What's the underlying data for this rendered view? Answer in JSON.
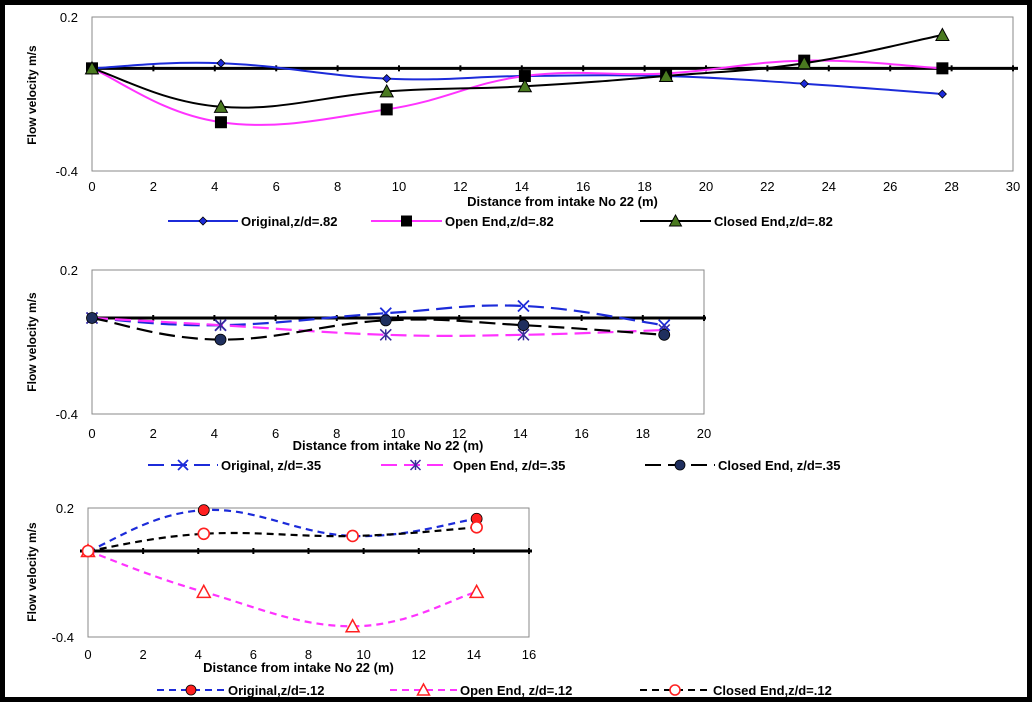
{
  "colors": {
    "blue": "#1c2bd9",
    "magenta": "#ff33ff",
    "black": "#000000",
    "red": "#ff2020",
    "navy": "#1f2f5e"
  },
  "chart_data": [
    {
      "type": "line",
      "ylabel": "Flow velocity m/s",
      "xlabel": "Distance from intake No 22  (m)",
      "xlim": [
        0,
        30
      ],
      "ylim": [
        -0.4,
        0.2
      ],
      "x_ticks": [
        "0",
        "2",
        "4",
        "6",
        "8",
        "10",
        "12",
        "14",
        "16",
        "18",
        "20",
        "22",
        "24",
        "26",
        "28",
        "30"
      ],
      "y_ticks": [
        "0.2",
        "-0.4"
      ],
      "smooth": true,
      "series": [
        {
          "name": "Original,z/d=.82",
          "color": "#1c2bd9",
          "marker": "diamond",
          "dash": "solid",
          "x": [
            0,
            4.2,
            9.6,
            14.1,
            18.7,
            23.2,
            27.7
          ],
          "y": [
            0,
            0.02,
            -0.04,
            -0.03,
            -0.03,
            -0.06,
            -0.1
          ]
        },
        {
          "name": "Open End,z/d=.82",
          "color": "#ff33ff",
          "marker": "square",
          "marker_color": "#000000",
          "dash": "solid",
          "x": [
            0,
            4.2,
            9.6,
            14.1,
            18.7,
            23.2,
            27.7
          ],
          "y": [
            0,
            -0.21,
            -0.16,
            -0.03,
            -0.02,
            0.03,
            0
          ]
        },
        {
          "name": "Closed End,z/d=.82",
          "color": "#000000",
          "marker": "triangle",
          "marker_color": "#4a7a20",
          "dash": "solid",
          "x": [
            0,
            4.2,
            9.6,
            14.1,
            18.7,
            23.2,
            27.7
          ],
          "y": [
            0,
            -0.15,
            -0.09,
            -0.07,
            -0.03,
            0.02,
            0.13
          ]
        }
      ]
    },
    {
      "type": "line",
      "ylabel": "Flow velocity m/s",
      "xlabel": "Distance from intake No 22  (m)",
      "xlim": [
        0,
        20
      ],
      "ylim": [
        -0.4,
        0.2
      ],
      "x_ticks": [
        "0",
        "2",
        "4",
        "6",
        "8",
        "10",
        "12",
        "14",
        "16",
        "18",
        "20"
      ],
      "y_ticks": [
        "0.2",
        "-0.4"
      ],
      "smooth": true,
      "series": [
        {
          "name": "Original, z/d=.35",
          "color": "#1c2bd9",
          "marker": "x",
          "dash": "long",
          "x": [
            0,
            4.2,
            9.6,
            14.1,
            18.7
          ],
          "y": [
            0,
            -0.03,
            0.02,
            0.05,
            -0.03
          ]
        },
        {
          "name": "Open End, z/d=.35",
          "color": "#ff33ff",
          "marker": "star",
          "dash": "long",
          "x": [
            0,
            4.2,
            9.6,
            14.1,
            18.7
          ],
          "y": [
            0,
            -0.03,
            -0.07,
            -0.07,
            -0.05
          ]
        },
        {
          "name": "Closed End, z/d=.35",
          "color": "#000000",
          "marker": "circle",
          "marker_color": "#1f2f5e",
          "dash": "long",
          "x": [
            0,
            4.2,
            9.6,
            14.1,
            18.7
          ],
          "y": [
            0,
            -0.09,
            -0.01,
            -0.03,
            -0.07
          ]
        }
      ]
    },
    {
      "type": "line",
      "ylabel": "Flow velocity m/s",
      "xlabel": "Distance from intake No 22 (m)",
      "xlim": [
        0,
        16
      ],
      "ylim": [
        -0.4,
        0.2
      ],
      "x_ticks": [
        "0",
        "2",
        "4",
        "6",
        "8",
        "10",
        "12",
        "14",
        "16"
      ],
      "y_ticks": [
        "0.2",
        "-0.4"
      ],
      "smooth": true,
      "series": [
        {
          "name": "Original,z/d=.12",
          "color": "#1c2bd9",
          "marker": "circle",
          "marker_color": "#ff2020",
          "dash": "short",
          "x": [
            0,
            4.2,
            9.6,
            14.1
          ],
          "y": [
            0,
            0.19,
            0.07,
            0.15
          ]
        },
        {
          "name": "Open End, z/d=.12",
          "color": "#ff33ff",
          "marker": "triangle-open",
          "marker_color": "#ff2020",
          "dash": "short",
          "x": [
            0,
            4.2,
            9.6,
            14.1
          ],
          "y": [
            0,
            -0.19,
            -0.35,
            -0.19
          ]
        },
        {
          "name": "Closed End,z/d=.12",
          "color": "#000000",
          "marker": "circle-open",
          "marker_color": "#ff2020",
          "dash": "short",
          "x": [
            0,
            4.2,
            9.6,
            14.1
          ],
          "y": [
            0,
            0.08,
            0.07,
            0.11
          ]
        }
      ]
    }
  ]
}
